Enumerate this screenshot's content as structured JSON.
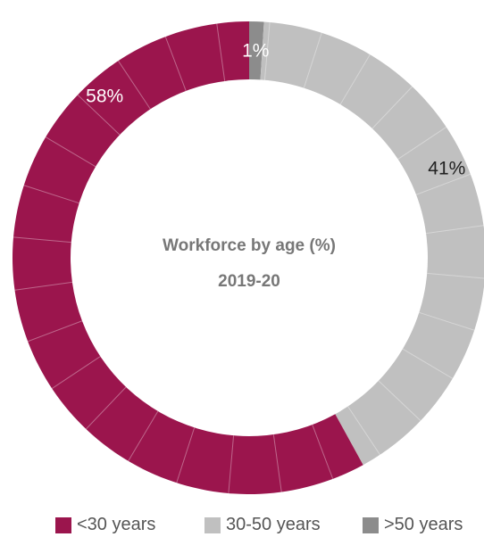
{
  "chart_data": {
    "type": "pie",
    "title": "Workforce by age (%)",
    "subtitle": "2019-20",
    "categories": [
      "<30 years",
      "30-50 years",
      ">50 years"
    ],
    "values": [
      58,
      41,
      1
    ],
    "labels": [
      "58%",
      "41%",
      "1%"
    ],
    "colors": [
      "#9b154d",
      "#c0c0c0",
      "#8c8c8c"
    ],
    "label_colors": [
      "#ffffff",
      "#222222",
      "#ffffff"
    ],
    "legend_position": "bottom",
    "donut": true
  }
}
